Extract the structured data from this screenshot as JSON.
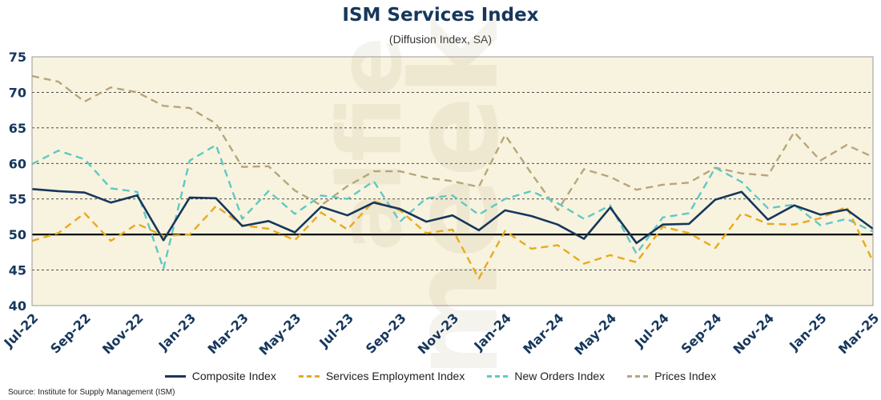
{
  "chart_data": {
    "type": "line",
    "title": "ISM Services Index",
    "subtitle": "(Diffusion Index, SA)",
    "xlabel": "",
    "ylabel": "",
    "ylim": [
      40,
      75
    ],
    "yticks": [
      40,
      45,
      50,
      55,
      60,
      65,
      70,
      75
    ],
    "x": [
      "Jul-22",
      "Aug-22",
      "Sep-22",
      "Oct-22",
      "Nov-22",
      "Dec-22",
      "Jan-23",
      "Feb-23",
      "Mar-23",
      "Apr-23",
      "May-23",
      "Jun-23",
      "Jul-23",
      "Aug-23",
      "Sep-23",
      "Oct-23",
      "Nov-23",
      "Dec-23",
      "Jan-24",
      "Feb-24",
      "Mar-24",
      "Apr-24",
      "May-24",
      "Jun-24",
      "Jul-24",
      "Aug-24",
      "Sep-24",
      "Oct-24",
      "Nov-24",
      "Dec-24",
      "Jan-25",
      "Feb-25",
      "Mar-25"
    ],
    "xtick_labels": [
      "Jul-22",
      "Sep-22",
      "Nov-22",
      "Jan-23",
      "Mar-23",
      "May-23",
      "Jul-23",
      "Sep-23",
      "Nov-23",
      "Jan-24",
      "Mar-24",
      "May-24",
      "Jul-24",
      "Sep-24",
      "Nov-24",
      "Jan-25",
      "Mar-25"
    ],
    "grid": "horizontal dashed",
    "reference_line": 50,
    "legend_position": "bottom",
    "series": [
      {
        "name": "Composite Index",
        "color": "#16375c",
        "style": "solid",
        "values": [
          56.4,
          56.1,
          55.9,
          54.5,
          55.5,
          49.2,
          55.2,
          55.1,
          51.2,
          51.9,
          50.3,
          53.9,
          52.7,
          54.5,
          53.6,
          51.8,
          52.7,
          50.6,
          53.4,
          52.6,
          51.4,
          49.4,
          53.8,
          48.8,
          51.4,
          51.5,
          54.9,
          56.0,
          52.1,
          54.1,
          52.8,
          53.5,
          50.8
        ]
      },
      {
        "name": "Services Employment Index",
        "color": "#e8aa1e",
        "style": "dashed",
        "values": [
          49.1,
          50.2,
          53.0,
          49.1,
          51.5,
          49.8,
          50.0,
          54.0,
          51.3,
          50.8,
          49.2,
          53.1,
          50.7,
          54.7,
          53.4,
          50.2,
          50.7,
          43.8,
          50.5,
          48.0,
          48.5,
          45.9,
          47.1,
          46.1,
          51.1,
          50.2,
          48.1,
          53.0,
          51.5,
          51.4,
          52.3,
          53.9,
          46.2
        ]
      },
      {
        "name": "New Orders Index",
        "color": "#5ec9c4",
        "style": "dashed",
        "values": [
          59.9,
          61.8,
          60.6,
          56.5,
          56.0,
          45.2,
          60.4,
          62.6,
          52.2,
          56.1,
          52.9,
          55.5,
          55.0,
          57.5,
          51.8,
          55.1,
          55.5,
          52.8,
          55.0,
          56.1,
          54.4,
          52.2,
          54.1,
          47.3,
          52.4,
          53.0,
          59.4,
          57.4,
          53.7,
          54.2,
          51.3,
          52.2,
          50.4
        ]
      },
      {
        "name": "Prices Index",
        "color": "#b7a67a",
        "style": "dashed",
        "values": [
          72.3,
          71.5,
          68.7,
          70.7,
          70.0,
          68.1,
          67.8,
          65.6,
          59.5,
          59.6,
          56.2,
          54.1,
          56.8,
          58.9,
          58.9,
          58.0,
          57.5,
          56.7,
          64.0,
          58.6,
          53.4,
          59.2,
          58.1,
          56.3,
          57.0,
          57.3,
          59.4,
          58.6,
          58.3,
          64.4,
          60.4,
          62.6,
          60.9
        ]
      }
    ]
  },
  "source": "Source: Institute for Supply Management (ISM)"
}
